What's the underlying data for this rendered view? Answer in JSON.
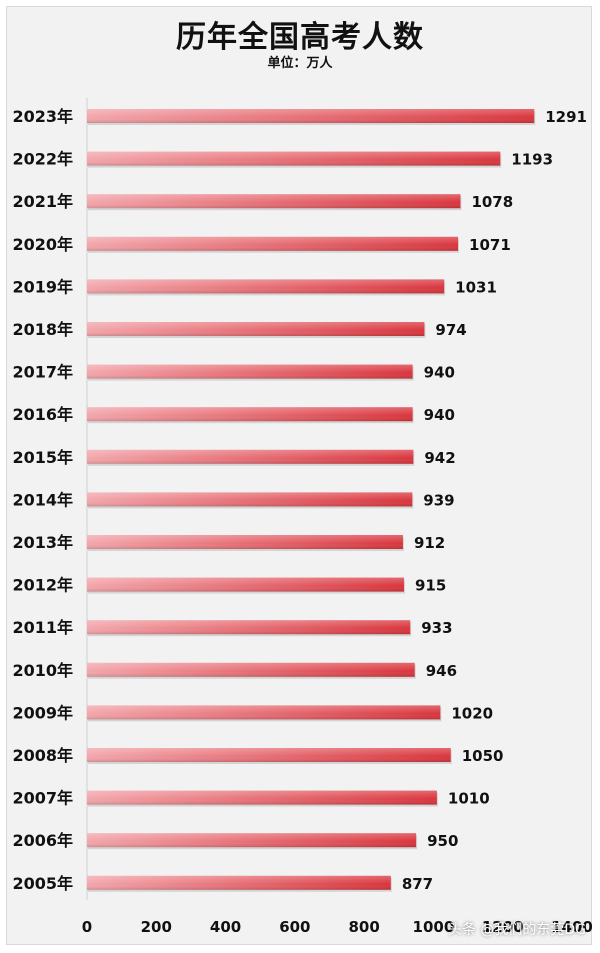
{
  "title": "历年全国高考人数",
  "subtitle": "单位：万人",
  "watermark": "头条 @我们的东莞DG",
  "colors": {
    "bar_start": "#f2a6ab",
    "bar_end": "#d9353d",
    "background": "#f2f2f2",
    "text": "#111111"
  },
  "chart_data": {
    "type": "bar",
    "orientation": "horizontal",
    "categories": [
      "2023年",
      "2022年",
      "2021年",
      "2020年",
      "2019年",
      "2018年",
      "2017年",
      "2016年",
      "2015年",
      "2014年",
      "2013年",
      "2012年",
      "2011年",
      "2010年",
      "2009年",
      "2008年",
      "2007年",
      "2006年",
      "2005年"
    ],
    "values": [
      1291,
      1193,
      1078,
      1071,
      1031,
      974,
      940,
      940,
      942,
      939,
      912,
      915,
      933,
      946,
      1020,
      1050,
      1010,
      950,
      877
    ],
    "xlim": [
      0,
      1400
    ],
    "xticks": [
      0,
      200,
      400,
      600,
      800,
      1000,
      1200,
      1400
    ],
    "data_labels": true,
    "grid": false,
    "legend": "none"
  }
}
